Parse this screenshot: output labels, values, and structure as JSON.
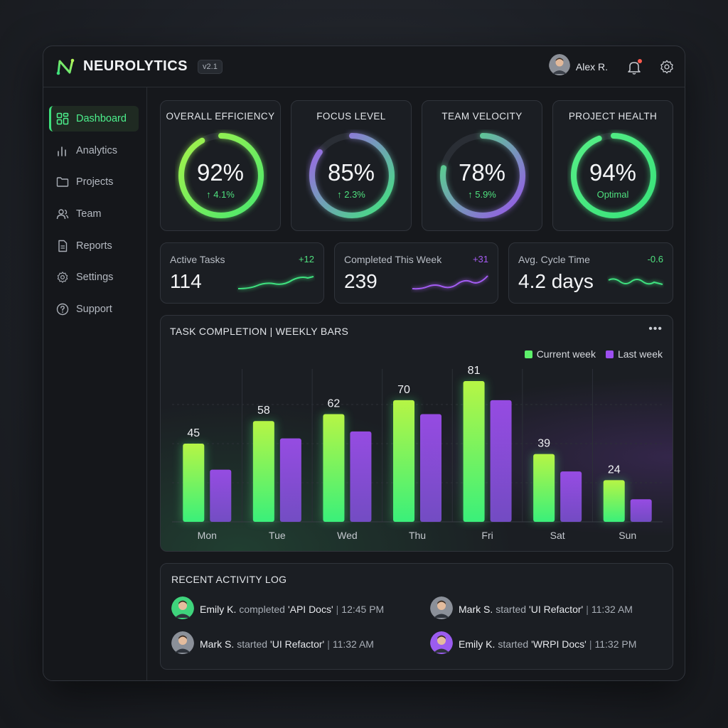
{
  "header": {
    "app_name": "NEUROLYTICS",
    "version": "v2.1",
    "user_name": "Alex R.",
    "notification_unread": true
  },
  "sidebar": {
    "items": [
      {
        "label": "Dashboard",
        "icon": "dashboard-icon",
        "active": true
      },
      {
        "label": "Analytics",
        "icon": "analytics-icon",
        "active": false
      },
      {
        "label": "Projects",
        "icon": "folder-icon",
        "active": false
      },
      {
        "label": "Team",
        "icon": "team-icon",
        "active": false
      },
      {
        "label": "Reports",
        "icon": "report-icon",
        "active": false
      },
      {
        "label": "Settings",
        "icon": "gear-icon",
        "active": false
      },
      {
        "label": "Support",
        "icon": "help-icon",
        "active": false
      }
    ]
  },
  "gauges": [
    {
      "title": "OVERALL EFFICIENCY",
      "value": "92%",
      "progress": 0.92,
      "sub": "↑ 4.1%",
      "colors": [
        "#48e86e",
        "#a6f24a"
      ]
    },
    {
      "title": "FOCUS LEVEL",
      "value": "85%",
      "progress": 0.85,
      "sub": "↑ 2.3%",
      "colors": [
        "#3ee87a",
        "#a25cf0"
      ]
    },
    {
      "title": "TEAM VELOCITY",
      "value": "78%",
      "progress": 0.78,
      "sub": "↑ 5.9%",
      "colors": [
        "#9a52ee",
        "#4ce87c"
      ]
    },
    {
      "title": "PROJECT HEALTH",
      "value": "94%",
      "progress": 0.94,
      "sub": "Optimal",
      "colors": [
        "#38e27a",
        "#56ef86"
      ]
    }
  ],
  "stats": [
    {
      "label": "Active Tasks",
      "value": "114",
      "delta": "+12",
      "delta_color": "#4fe07e",
      "spark_color": "#3fe27f"
    },
    {
      "label": "Completed This Week",
      "value": "239",
      "delta": "+31",
      "delta_color": "#a65cf3",
      "spark_color": "#a35cf2"
    },
    {
      "label": "Avg. Cycle Time",
      "value": "4.2 days",
      "delta": "-0.6",
      "delta_color": "#4fe07e",
      "spark_color": "#3fe27f"
    }
  ],
  "chart_data": {
    "type": "bar",
    "title": "TASK COMPLETION | WEEKLY BARS",
    "categories": [
      "Mon",
      "Tue",
      "Wed",
      "Thu",
      "Fri",
      "Sat",
      "Sun"
    ],
    "series": [
      {
        "name": "Current week",
        "values": [
          45,
          58,
          62,
          70,
          81,
          39,
          24
        ],
        "color": "#5df06a"
      },
      {
        "name": "Last week",
        "values": [
          30,
          48,
          52,
          62,
          70,
          29,
          13
        ],
        "color": "#9d4ff0"
      }
    ],
    "data_labels": "current week only",
    "ylim": [
      0,
      90
    ],
    "grid": true,
    "legend": "top-right"
  },
  "activity": {
    "title": "RECENT ACTIVITY LOG",
    "items": [
      {
        "user": "Emily K.",
        "action": "completed",
        "target": "'API Docs'",
        "time": "12:45 PM",
        "avatar_color": "#3fd47c"
      },
      {
        "user": "Mark S.",
        "action": "started",
        "target": "'UI Refactor'",
        "time": "11:32 AM",
        "avatar_color": "#8b9099"
      },
      {
        "user": "Mark S.",
        "action": "started",
        "target": "'UI Refactor'",
        "time": "11:32 AM",
        "avatar_color": "#8b9099"
      },
      {
        "user": "Emily K.",
        "action": "started",
        "target": "'WRPI Docs'",
        "time": "11:32 PM",
        "avatar_color": "#9b5cf0"
      }
    ]
  }
}
